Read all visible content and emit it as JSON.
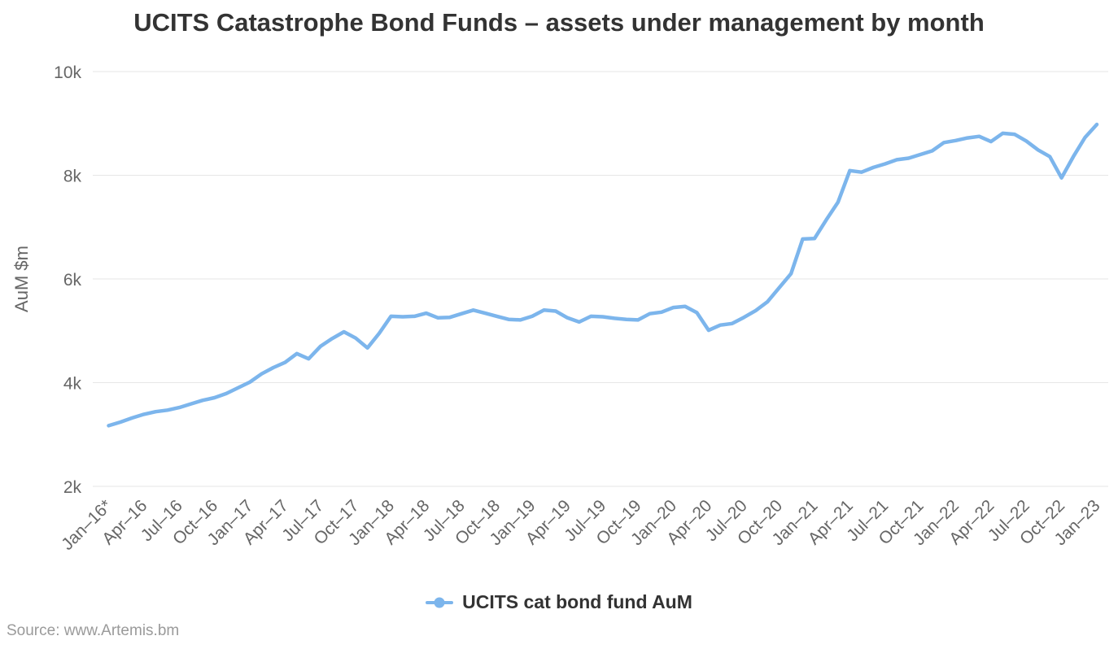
{
  "chart_data": {
    "type": "line",
    "title": "UCITS Catastrophe Bond Funds – assets under management by month",
    "xlabel": "",
    "ylabel": "AuM $m",
    "ylim": [
      2000,
      10000
    ],
    "yticks": [
      {
        "value": 2000,
        "label": "2k"
      },
      {
        "value": 4000,
        "label": "4k"
      },
      {
        "value": 6000,
        "label": "6k"
      },
      {
        "value": 8000,
        "label": "8k"
      },
      {
        "value": 10000,
        "label": "10k"
      }
    ],
    "tick_interval": 3,
    "grid": true,
    "legend_position": "bottom-center",
    "categories": [
      "Jan–16*",
      "Feb–16",
      "Mar–16",
      "Apr–16",
      "May–16",
      "Jun–16",
      "Jul–16",
      "Aug–16",
      "Sep–16",
      "Oct–16",
      "Nov–16",
      "Dec–16",
      "Jan–17",
      "Feb–17",
      "Mar–17",
      "Apr–17",
      "May–17",
      "Jun–17",
      "Jul–17",
      "Aug–17",
      "Sep–17",
      "Oct–17",
      "Nov–17",
      "Dec–17",
      "Jan–18",
      "Feb–18",
      "Mar–18",
      "Apr–18",
      "May–18",
      "Jun–18",
      "Jul–18",
      "Aug–18",
      "Sep–18",
      "Oct–18",
      "Nov–18",
      "Dec–18",
      "Jan–19",
      "Feb–19",
      "Mar–19",
      "Apr–19",
      "May–19",
      "Jun–19",
      "Jul–19",
      "Aug–19",
      "Sep–19",
      "Oct–19",
      "Nov–19",
      "Dec–19",
      "Jan–20",
      "Feb–20",
      "Mar–20",
      "Apr–20",
      "May–20",
      "Jun–20",
      "Jul–20",
      "Aug–20",
      "Sep–20",
      "Oct–20",
      "Nov–20",
      "Dec–20",
      "Jan–21",
      "Feb–21",
      "Mar–21",
      "Apr–21",
      "May–21",
      "Jun–21",
      "Jul–21",
      "Aug–21",
      "Sep–21",
      "Oct–21",
      "Nov–21",
      "Dec–21",
      "Jan–22",
      "Feb–22",
      "Mar–22",
      "Apr–22",
      "May–22",
      "Jun–22",
      "Jul–22",
      "Aug–22",
      "Sep–22",
      "Oct–22",
      "Nov–22",
      "Dec–22",
      "Jan–23"
    ],
    "series": [
      {
        "name": "UCITS cat bond fund AuM",
        "color": "#7cb5ec",
        "values": [
          3170,
          3240,
          3320,
          3390,
          3440,
          3470,
          3520,
          3590,
          3660,
          3710,
          3790,
          3900,
          4010,
          4170,
          4290,
          4390,
          4560,
          4460,
          4700,
          4850,
          4980,
          4860,
          4670,
          4950,
          5280,
          5270,
          5280,
          5340,
          5250,
          5260,
          5330,
          5400,
          5340,
          5280,
          5220,
          5210,
          5280,
          5400,
          5380,
          5250,
          5170,
          5280,
          5270,
          5240,
          5220,
          5210,
          5330,
          5360,
          5450,
          5470,
          5350,
          5010,
          5110,
          5140,
          5260,
          5390,
          5560,
          5830,
          6100,
          6770,
          6780,
          7140,
          7480,
          8090,
          8060,
          8150,
          8220,
          8300,
          8330,
          8400,
          8470,
          8630,
          8670,
          8720,
          8750,
          8650,
          8810,
          8790,
          8660,
          8490,
          8360,
          7950,
          8360,
          8730,
          8980
        ]
      }
    ]
  },
  "footer": {
    "source": "Source: www.Artemis.bm"
  },
  "colors": {
    "accent": "#7cb5ec",
    "title_text": "#333333",
    "axis_text": "#666666",
    "grid": "#e6e6e6",
    "source_text": "#9a9a9a",
    "background": "#ffffff"
  }
}
